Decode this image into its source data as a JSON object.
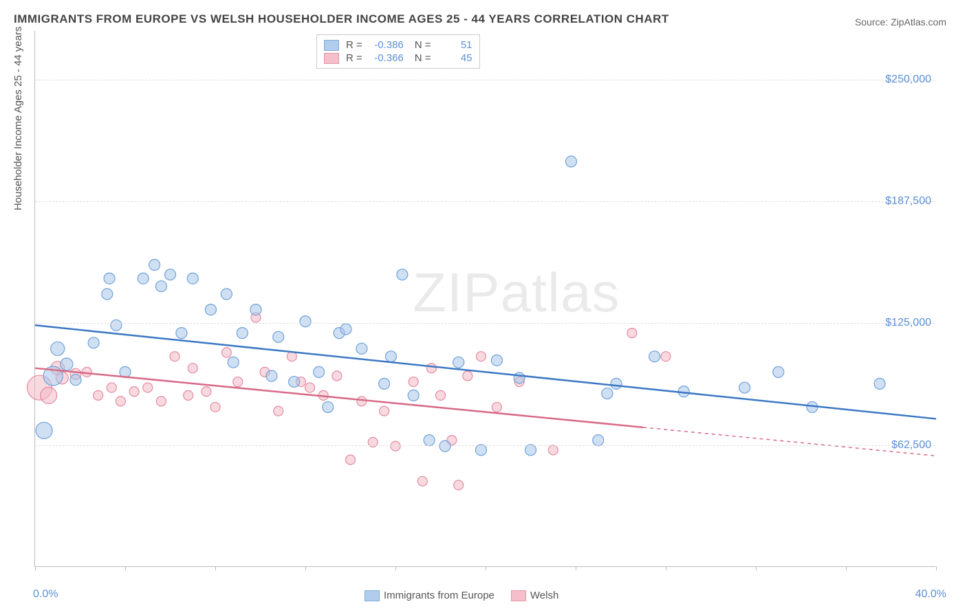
{
  "title": "IMMIGRANTS FROM EUROPE VS WELSH HOUSEHOLDER INCOME AGES 25 - 44 YEARS CORRELATION CHART",
  "source_prefix": "Source: ",
  "source_name": "ZipAtlas.com",
  "watermark": "ZIPatlas",
  "yaxis_label": "Householder Income Ages 25 - 44 years",
  "chart": {
    "type": "scatter",
    "xlim": [
      0,
      40
    ],
    "ylim": [
      0,
      275000
    ],
    "x_left_label": "0.0%",
    "x_right_label": "40.0%",
    "y_ticks": [
      62500,
      125000,
      187500,
      250000
    ],
    "y_tick_labels": [
      "$62,500",
      "$125,000",
      "$187,500",
      "$250,000"
    ],
    "x_tick_positions_pct": [
      0,
      10,
      20,
      30,
      40,
      50,
      60,
      70,
      80,
      90,
      100
    ],
    "grid_color": "#dddddd",
    "axis_color": "#bbbbbb",
    "background_color": "#ffffff",
    "tick_label_color": "#5b8fd6"
  },
  "series": [
    {
      "key": "europe",
      "label": "Immigrants from Europe",
      "fill": "#a9c7ea",
      "stroke": "#6fa1da",
      "line_color": "#3b78c4",
      "fill_opacity": 0.55,
      "R": "-0.386",
      "N": "51",
      "marker_radius": 8,
      "trend": {
        "x1": 0,
        "y1": 124000,
        "x2": 40,
        "y2": 76000,
        "dash_after_x": null
      },
      "points": [
        {
          "x": 0.4,
          "y": 70000,
          "r": 12
        },
        {
          "x": 0.8,
          "y": 98000,
          "r": 14
        },
        {
          "x": 1.0,
          "y": 112000,
          "r": 10
        },
        {
          "x": 1.4,
          "y": 104000,
          "r": 9
        },
        {
          "x": 1.8,
          "y": 96000,
          "r": 8
        },
        {
          "x": 2.6,
          "y": 115000,
          "r": 8
        },
        {
          "x": 3.2,
          "y": 140000,
          "r": 8
        },
        {
          "x": 3.3,
          "y": 148000,
          "r": 8
        },
        {
          "x": 3.6,
          "y": 124000,
          "r": 8
        },
        {
          "x": 4.0,
          "y": 100000,
          "r": 8
        },
        {
          "x": 4.8,
          "y": 148000,
          "r": 8
        },
        {
          "x": 5.3,
          "y": 155000,
          "r": 8
        },
        {
          "x": 5.6,
          "y": 144000,
          "r": 8
        },
        {
          "x": 6.0,
          "y": 150000,
          "r": 8
        },
        {
          "x": 6.5,
          "y": 120000,
          "r": 8
        },
        {
          "x": 7.0,
          "y": 148000,
          "r": 8
        },
        {
          "x": 7.8,
          "y": 132000,
          "r": 8
        },
        {
          "x": 8.5,
          "y": 140000,
          "r": 8
        },
        {
          "x": 8.8,
          "y": 105000,
          "r": 8
        },
        {
          "x": 9.2,
          "y": 120000,
          "r": 8
        },
        {
          "x": 9.8,
          "y": 132000,
          "r": 8
        },
        {
          "x": 10.5,
          "y": 98000,
          "r": 8
        },
        {
          "x": 10.8,
          "y": 118000,
          "r": 8
        },
        {
          "x": 11.5,
          "y": 95000,
          "r": 8
        },
        {
          "x": 12.0,
          "y": 126000,
          "r": 8
        },
        {
          "x": 12.6,
          "y": 100000,
          "r": 8
        },
        {
          "x": 13.0,
          "y": 82000,
          "r": 8
        },
        {
          "x": 13.5,
          "y": 120000,
          "r": 8
        },
        {
          "x": 13.8,
          "y": 122000,
          "r": 8
        },
        {
          "x": 14.5,
          "y": 112000,
          "r": 8
        },
        {
          "x": 15.5,
          "y": 94000,
          "r": 8
        },
        {
          "x": 15.8,
          "y": 108000,
          "r": 8
        },
        {
          "x": 16.3,
          "y": 150000,
          "r": 8
        },
        {
          "x": 16.8,
          "y": 88000,
          "r": 8
        },
        {
          "x": 17.5,
          "y": 65000,
          "r": 8
        },
        {
          "x": 18.2,
          "y": 62000,
          "r": 8
        },
        {
          "x": 18.8,
          "y": 105000,
          "r": 8
        },
        {
          "x": 19.8,
          "y": 60000,
          "r": 8
        },
        {
          "x": 20.5,
          "y": 106000,
          "r": 8
        },
        {
          "x": 21.5,
          "y": 97000,
          "r": 8
        },
        {
          "x": 22.0,
          "y": 60000,
          "r": 8
        },
        {
          "x": 23.8,
          "y": 208000,
          "r": 8
        },
        {
          "x": 25.0,
          "y": 65000,
          "r": 8
        },
        {
          "x": 25.4,
          "y": 89000,
          "r": 8
        },
        {
          "x": 25.8,
          "y": 94000,
          "r": 8
        },
        {
          "x": 27.5,
          "y": 108000,
          "r": 8
        },
        {
          "x": 28.8,
          "y": 90000,
          "r": 8
        },
        {
          "x": 31.5,
          "y": 92000,
          "r": 8
        },
        {
          "x": 33.0,
          "y": 100000,
          "r": 8
        },
        {
          "x": 34.5,
          "y": 82000,
          "r": 8
        },
        {
          "x": 37.5,
          "y": 94000,
          "r": 8
        }
      ]
    },
    {
      "key": "welsh",
      "label": "Welsh",
      "fill": "#f3b9c5",
      "stroke": "#e48aa0",
      "line_color": "#d86a87",
      "fill_opacity": 0.55,
      "R": "-0.366",
      "N": "45",
      "marker_radius": 7,
      "trend": {
        "x1": 0,
        "y1": 102000,
        "x2": 40,
        "y2": 57000,
        "dash_after_x": 27
      },
      "points": [
        {
          "x": 0.2,
          "y": 92000,
          "r": 18
        },
        {
          "x": 0.6,
          "y": 88000,
          "r": 12
        },
        {
          "x": 1.0,
          "y": 102000,
          "r": 10
        },
        {
          "x": 1.2,
          "y": 97000,
          "r": 9
        },
        {
          "x": 1.8,
          "y": 99000,
          "r": 8
        },
        {
          "x": 2.3,
          "y": 100000,
          "r": 7
        },
        {
          "x": 2.8,
          "y": 88000,
          "r": 7
        },
        {
          "x": 3.4,
          "y": 92000,
          "r": 7
        },
        {
          "x": 3.8,
          "y": 85000,
          "r": 7
        },
        {
          "x": 4.4,
          "y": 90000,
          "r": 7
        },
        {
          "x": 5.0,
          "y": 92000,
          "r": 7
        },
        {
          "x": 5.6,
          "y": 85000,
          "r": 7
        },
        {
          "x": 6.2,
          "y": 108000,
          "r": 7
        },
        {
          "x": 6.8,
          "y": 88000,
          "r": 7
        },
        {
          "x": 7.0,
          "y": 102000,
          "r": 7
        },
        {
          "x": 7.6,
          "y": 90000,
          "r": 7
        },
        {
          "x": 8.0,
          "y": 82000,
          "r": 7
        },
        {
          "x": 8.5,
          "y": 110000,
          "r": 7
        },
        {
          "x": 9.0,
          "y": 95000,
          "r": 7
        },
        {
          "x": 9.8,
          "y": 128000,
          "r": 7
        },
        {
          "x": 10.2,
          "y": 100000,
          "r": 7
        },
        {
          "x": 10.8,
          "y": 80000,
          "r": 7
        },
        {
          "x": 11.4,
          "y": 108000,
          "r": 7
        },
        {
          "x": 11.8,
          "y": 95000,
          "r": 7
        },
        {
          "x": 12.2,
          "y": 92000,
          "r": 7
        },
        {
          "x": 12.8,
          "y": 88000,
          "r": 7
        },
        {
          "x": 13.4,
          "y": 98000,
          "r": 7
        },
        {
          "x": 14.0,
          "y": 55000,
          "r": 7
        },
        {
          "x": 14.5,
          "y": 85000,
          "r": 7
        },
        {
          "x": 15.0,
          "y": 64000,
          "r": 7
        },
        {
          "x": 15.5,
          "y": 80000,
          "r": 7
        },
        {
          "x": 16.0,
          "y": 62000,
          "r": 7
        },
        {
          "x": 16.8,
          "y": 95000,
          "r": 7
        },
        {
          "x": 17.2,
          "y": 44000,
          "r": 7
        },
        {
          "x": 17.6,
          "y": 102000,
          "r": 7
        },
        {
          "x": 18.0,
          "y": 88000,
          "r": 7
        },
        {
          "x": 18.5,
          "y": 65000,
          "r": 7
        },
        {
          "x": 18.8,
          "y": 42000,
          "r": 7
        },
        {
          "x": 19.2,
          "y": 98000,
          "r": 7
        },
        {
          "x": 19.8,
          "y": 108000,
          "r": 7
        },
        {
          "x": 20.5,
          "y": 82000,
          "r": 7
        },
        {
          "x": 21.5,
          "y": 95000,
          "r": 7
        },
        {
          "x": 23.0,
          "y": 60000,
          "r": 7
        },
        {
          "x": 26.5,
          "y": 120000,
          "r": 7
        },
        {
          "x": 28.0,
          "y": 108000,
          "r": 7
        }
      ]
    }
  ],
  "legend_top": {
    "R_label": "R =",
    "N_label": "N ="
  }
}
